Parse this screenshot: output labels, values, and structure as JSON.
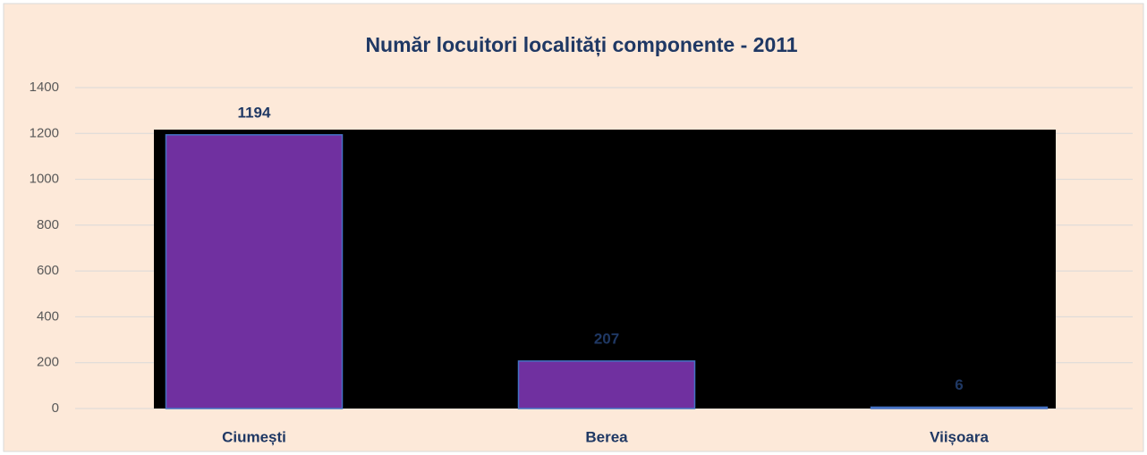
{
  "chart_data": {
    "type": "bar",
    "title": "Număr locuitori localități componente - 2011",
    "categories": [
      "Ciumești",
      "Berea",
      "Viișoara"
    ],
    "values": [
      1194,
      207,
      6
    ],
    "color": "#7030a0",
    "ylim": [
      0,
      1400
    ],
    "yticks": [
      0,
      200,
      400,
      600,
      800,
      1000,
      1200,
      1400
    ],
    "grid": true
  }
}
